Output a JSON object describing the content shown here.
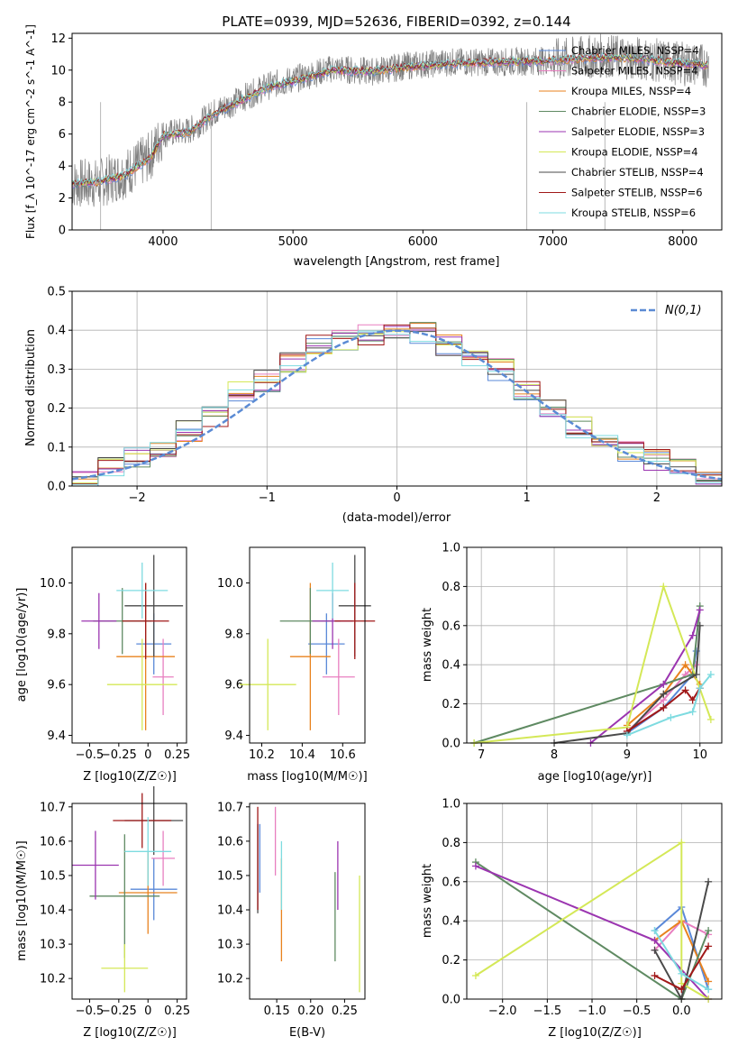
{
  "figure_title": "PLATE=0939, MJD=52636, FIBERID=0392, z=0.144",
  "series": [
    {
      "name": "Chabrier MILES, N_SSP=4",
      "color": "#5a88d8"
    },
    {
      "name": "Salpeter MILES, N_SSP=4",
      "color": "#e87fc0"
    },
    {
      "name": "Kroupa MILES, N_SSP=4",
      "color": "#e8821e"
    },
    {
      "name": "Chabrier ELODIE, N_SSP=3",
      "color": "#5f8a62"
    },
    {
      "name": "Salpeter ELODIE, N_SSP=3",
      "color": "#9b35b0"
    },
    {
      "name": "Kroupa ELODIE, N_SSP=4",
      "color": "#d4e857"
    },
    {
      "name": "Chabrier STELIB, N_SSP=4",
      "color": "#4a4a4a"
    },
    {
      "name": "Salpeter STELIB, N_SSP=6",
      "color": "#a01818"
    },
    {
      "name": "Kroupa STELIB, N_SSP=6",
      "color": "#7edbe0"
    }
  ],
  "panels": {
    "spectrum": {
      "xlabel": "wavelength [Angstrom, rest frame]",
      "ylabel": "Flux [f_λ 10^-17 erg cm^-2 s^-1 A^-1]"
    },
    "hist": {
      "xlabel": "(data-model)/error",
      "ylabel": "Normed distribution",
      "legend": "N(0,1)"
    },
    "age_z": {
      "xlabel": "Z [log10(Z/Z☉)]",
      "ylabel": "age [log10(age/yr)]"
    },
    "age_mass": {
      "xlabel": "mass [log10(M/M☉)]"
    },
    "mw_age": {
      "xlabel": "age [log10(age/yr)]",
      "ylabel": "mass weight"
    },
    "mass_z": {
      "xlabel": "Z [log10(Z/Z☉)]",
      "ylabel": "mass [log10(M/M☉)]"
    },
    "mass_ebv": {
      "xlabel": "E(B-V)"
    },
    "mw_z": {
      "xlabel": "Z [log10(Z/Z☉)]",
      "ylabel": "mass weight"
    }
  },
  "chart_data": [
    {
      "type": "line",
      "title": "PLATE=0939, MJD=52636, FIBERID=0392, z=0.144",
      "xlabel": "wavelength [Angstrom, rest frame]",
      "ylabel": "Flux [fλ 10^-17 erg cm^-2 s^-1 A^-1]",
      "xlim": [
        3300,
        8300
      ],
      "ylim": [
        0,
        12.3
      ],
      "xticks": [
        4000,
        5000,
        6000,
        7000,
        8000
      ],
      "yticks": [
        0,
        2,
        4,
        6,
        8,
        10,
        12
      ],
      "x": [
        3300,
        3500,
        3700,
        3900,
        4000,
        4200,
        4400,
        4600,
        4800,
        5000,
        5300,
        5600,
        5900,
        6200,
        6600,
        7000,
        7400,
        7700,
        8000,
        8200
      ],
      "data_flux": [
        2.9,
        2.9,
        3.5,
        4.6,
        6.0,
        6.2,
        7.4,
        8.2,
        9.0,
        9.4,
        10.1,
        9.9,
        10.3,
        10.5,
        10.5,
        10.6,
        10.9,
        10.7,
        10.4,
        10.3
      ],
      "model_flux": [
        2.9,
        3.0,
        3.4,
        4.5,
        5.9,
        6.1,
        7.3,
        8.1,
        8.9,
        9.3,
        10.0,
        9.9,
        10.2,
        10.4,
        10.5,
        10.6,
        10.8,
        10.7,
        10.4,
        10.3
      ]
    },
    {
      "type": "bar",
      "title": "",
      "xlabel": "(data-model)/error",
      "ylabel": "Normed distribution",
      "xlim": [
        -2.5,
        2.5
      ],
      "ylim": [
        0,
        0.5
      ],
      "xticks": [
        -2,
        -1,
        0,
        1,
        2
      ],
      "yticks": [
        0.0,
        0.1,
        0.2,
        0.3,
        0.4,
        0.5
      ],
      "bin_centers": [
        -2.4,
        -2.2,
        -2.0,
        -1.8,
        -1.6,
        -1.4,
        -1.2,
        -1.0,
        -0.8,
        -0.6,
        -0.4,
        -0.2,
        0.0,
        0.2,
        0.4,
        0.6,
        0.8,
        1.0,
        1.2,
        1.4,
        1.6,
        1.8,
        2.0,
        2.2,
        2.4
      ],
      "values": [
        0.03,
        0.05,
        0.07,
        0.09,
        0.14,
        0.18,
        0.24,
        0.27,
        0.32,
        0.36,
        0.37,
        0.39,
        0.4,
        0.39,
        0.36,
        0.33,
        0.3,
        0.25,
        0.2,
        0.15,
        0.12,
        0.09,
        0.07,
        0.05,
        0.03
      ],
      "gaussian_label": "N(0,1)"
    },
    {
      "type": "scatter",
      "xlabel": "Z [log10(Z/Z☉)]",
      "ylabel": "age [log10(age/yr)]",
      "xlim": [
        -0.65,
        0.33
      ],
      "ylim": [
        9.37,
        10.14
      ],
      "xticks": [
        -0.5,
        -0.25,
        0.0,
        0.25
      ],
      "yticks": [
        9.4,
        9.6,
        9.8,
        10.0
      ],
      "points": [
        {
          "x": 0.05,
          "y": 9.76,
          "xerr": 0.15,
          "yerr": 0.12
        },
        {
          "x": 0.13,
          "y": 9.63,
          "xerr": 0.09,
          "yerr": 0.15
        },
        {
          "x": -0.02,
          "y": 9.71,
          "xerr": 0.25,
          "yerr": 0.29
        },
        {
          "x": -0.22,
          "y": 9.85,
          "xerr": 0.25,
          "yerr": 0.13
        },
        {
          "x": -0.42,
          "y": 9.85,
          "xerr": 0.15,
          "yerr": 0.11
        },
        {
          "x": -0.05,
          "y": 9.6,
          "xerr": 0.3,
          "yerr": 0.18
        },
        {
          "x": 0.05,
          "y": 9.91,
          "xerr": 0.25,
          "yerr": 0.2
        },
        {
          "x": -0.02,
          "y": 9.85,
          "xerr": 0.2,
          "yerr": 0.15
        },
        {
          "x": -0.05,
          "y": 9.97,
          "xerr": 0.22,
          "yerr": 0.11
        }
      ]
    },
    {
      "type": "scatter",
      "xlabel": "mass [log10(M/M☉)]",
      "xlim": [
        10.14,
        10.71
      ],
      "ylim": [
        9.37,
        10.14
      ],
      "xticks": [
        10.2,
        10.4,
        10.6
      ],
      "yticks": [
        9.4,
        9.6,
        9.8,
        10.0
      ],
      "points": [
        {
          "x": 10.52,
          "y": 9.76,
          "xerr": 0.09,
          "yerr": 0.12
        },
        {
          "x": 10.58,
          "y": 9.63,
          "xerr": 0.08,
          "yerr": 0.15
        },
        {
          "x": 10.44,
          "y": 9.71,
          "xerr": 0.1,
          "yerr": 0.29
        },
        {
          "x": 10.44,
          "y": 9.85,
          "xerr": 0.15,
          "yerr": 0.13
        },
        {
          "x": 10.55,
          "y": 9.85,
          "xerr": 0.1,
          "yerr": 0.11
        },
        {
          "x": 10.23,
          "y": 9.6,
          "xerr": 0.14,
          "yerr": 0.18
        },
        {
          "x": 10.66,
          "y": 9.91,
          "xerr": 0.08,
          "yerr": 0.2
        },
        {
          "x": 10.66,
          "y": 9.85,
          "xerr": 0.1,
          "yerr": 0.15
        },
        {
          "x": 10.55,
          "y": 9.97,
          "xerr": 0.08,
          "yerr": 0.11
        }
      ]
    },
    {
      "type": "line",
      "xlabel": "age [log10(age/yr)]",
      "ylabel": "mass weight",
      "xlim": [
        6.8,
        10.3
      ],
      "ylim": [
        0,
        1.0
      ],
      "xticks": [
        7,
        8,
        9,
        10
      ],
      "yticks": [
        0.0,
        0.2,
        0.4,
        0.6,
        0.8,
        1.0
      ],
      "series": [
        {
          "x": [
            9.0,
            9.5,
            9.9,
            9.95
          ],
          "y": [
            0.05,
            0.18,
            0.35,
            0.47
          ]
        },
        {
          "x": [
            9.0,
            9.5,
            9.8,
            9.95
          ],
          "y": [
            0.06,
            0.22,
            0.35,
            0.4
          ]
        },
        {
          "x": [
            9.0,
            9.5,
            9.8,
            10.0
          ],
          "y": [
            0.09,
            0.25,
            0.4,
            0.3
          ]
        },
        {
          "x": [
            6.9,
            9.5,
            9.9,
            10.0
          ],
          "y": [
            0.0,
            0.3,
            0.35,
            0.7
          ]
        },
        {
          "x": [
            8.5,
            9.5,
            9.9,
            10.0
          ],
          "y": [
            0.0,
            0.3,
            0.55,
            0.68
          ]
        },
        {
          "x": [
            6.9,
            9.0,
            9.5,
            10.15
          ],
          "y": [
            0.0,
            0.08,
            0.8,
            0.12
          ]
        },
        {
          "x": [
            8.0,
            9.0,
            9.5,
            9.95,
            10.0
          ],
          "y": [
            0.0,
            0.05,
            0.25,
            0.35,
            0.6
          ]
        },
        {
          "x": [
            9.0,
            9.5,
            9.8,
            9.9,
            10.0
          ],
          "y": [
            0.06,
            0.18,
            0.27,
            0.22,
            0.28
          ]
        },
        {
          "x": [
            9.0,
            9.6,
            9.9,
            10.0,
            10.15
          ],
          "y": [
            0.04,
            0.13,
            0.16,
            0.28,
            0.35
          ]
        }
      ]
    },
    {
      "type": "scatter",
      "xlabel": "Z [log10(Z/Z☉)]",
      "ylabel": "mass [log10(M/M☉)]",
      "xlim": [
        -0.65,
        0.33
      ],
      "ylim": [
        10.14,
        10.71
      ],
      "xticks": [
        -0.5,
        -0.25,
        0.0,
        0.25
      ],
      "yticks": [
        10.2,
        10.3,
        10.4,
        10.5,
        10.6,
        10.7
      ],
      "points": [
        {
          "x": 0.05,
          "y": 10.46,
          "xerr": 0.2,
          "yerr": 0.09
        },
        {
          "x": 0.13,
          "y": 10.55,
          "xerr": 0.1,
          "yerr": 0.08
        },
        {
          "x": 0.0,
          "y": 10.45,
          "xerr": 0.25,
          "yerr": 0.12
        },
        {
          "x": -0.2,
          "y": 10.44,
          "xerr": 0.3,
          "yerr": 0.18
        },
        {
          "x": -0.45,
          "y": 10.53,
          "xerr": 0.2,
          "yerr": 0.1
        },
        {
          "x": -0.2,
          "y": 10.23,
          "xerr": 0.2,
          "yerr": 0.07
        },
        {
          "x": 0.05,
          "y": 10.66,
          "xerr": 0.25,
          "yerr": 0.1
        },
        {
          "x": -0.05,
          "y": 10.66,
          "xerr": 0.25,
          "yerr": 0.08
        },
        {
          "x": 0.0,
          "y": 10.57,
          "xerr": 0.2,
          "yerr": 0.1
        }
      ]
    },
    {
      "type": "scatter",
      "xlabel": "E(B-V)",
      "xlim": [
        0.11,
        0.28
      ],
      "ylim": [
        10.14,
        10.71
      ],
      "xticks": [
        0.15,
        0.2,
        0.25
      ],
      "yticks": [
        10.2,
        10.3,
        10.4,
        10.5,
        10.6,
        10.7
      ],
      "points": [
        {
          "x": 0.125,
          "y": 10.55,
          "yerr": 0.1
        },
        {
          "x": 0.148,
          "y": 10.6,
          "yerr": 0.1
        },
        {
          "x": 0.157,
          "y": 10.4,
          "yerr": 0.15
        },
        {
          "x": 0.236,
          "y": 10.38,
          "yerr": 0.13
        },
        {
          "x": 0.24,
          "y": 10.5,
          "yerr": 0.1
        },
        {
          "x": 0.272,
          "y": 10.33,
          "yerr": 0.17
        },
        {
          "x": 0.122,
          "y": 10.52,
          "yerr": 0.13
        },
        {
          "x": 0.122,
          "y": 10.55,
          "yerr": 0.15
        },
        {
          "x": 0.157,
          "y": 10.5,
          "yerr": 0.1
        }
      ]
    },
    {
      "type": "line",
      "xlabel": "Z [log10(Z/Z☉)]",
      "ylabel": "mass weight",
      "xlim": [
        -2.4,
        0.45
      ],
      "ylim": [
        0,
        1.0
      ],
      "xticks": [
        -2.0,
        -1.5,
        -1.0,
        -0.5,
        0.0
      ],
      "yticks": [
        0.0,
        0.2,
        0.4,
        0.6,
        0.8,
        1.0
      ],
      "series": [
        {
          "x": [
            -0.3,
            0.0,
            0.3
          ],
          "y": [
            0.35,
            0.47,
            0.05
          ]
        },
        {
          "x": [
            -0.3,
            0.0,
            0.3
          ],
          "y": [
            0.25,
            0.4,
            0.33
          ]
        },
        {
          "x": [
            -0.3,
            0.0,
            0.3
          ],
          "y": [
            0.3,
            0.4,
            0.09
          ]
        },
        {
          "x": [
            -2.3,
            0.0,
            0.3
          ],
          "y": [
            0.7,
            0.0,
            0.35
          ]
        },
        {
          "x": [
            -2.3,
            -0.3,
            0.3
          ],
          "y": [
            0.68,
            0.3,
            0.0
          ]
        },
        {
          "x": [
            -2.3,
            0.0,
            0.0,
            0.3
          ],
          "y": [
            0.12,
            0.8,
            0.08,
            0.0
          ]
        },
        {
          "x": [
            -0.3,
            0.0,
            0.3
          ],
          "y": [
            0.25,
            0.0,
            0.6
          ]
        },
        {
          "x": [
            -0.3,
            0.0,
            0.3
          ],
          "y": [
            0.12,
            0.05,
            0.27
          ]
        },
        {
          "x": [
            -0.3,
            0.0,
            0.3
          ],
          "y": [
            0.35,
            0.13,
            0.05
          ]
        }
      ]
    }
  ]
}
